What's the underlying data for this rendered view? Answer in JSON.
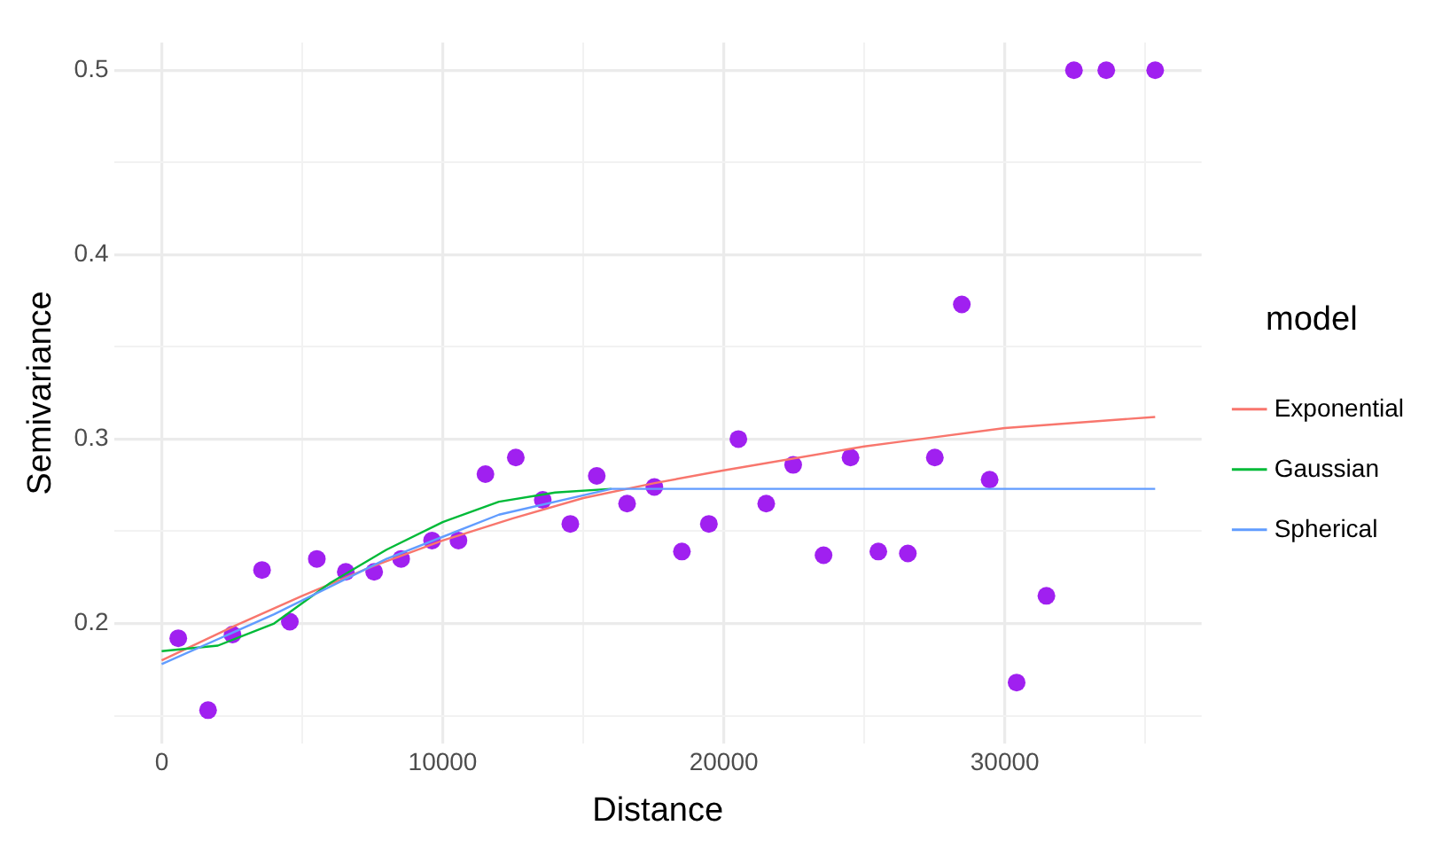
{
  "chart_data": {
    "type": "scatter",
    "xlabel": "Distance",
    "ylabel": "Semivariance",
    "legend_title": "model",
    "legend": "right",
    "grid": true,
    "xlim": [
      -1700,
      37000
    ],
    "ylim": [
      0.135,
      0.515
    ],
    "xticks": [
      0,
      {
        "value": 5000,
        "label": null
      },
      10000,
      {
        "value": 15000,
        "label": null
      },
      20000,
      {
        "value": 25000,
        "label": null
      },
      30000,
      {
        "value": 35000,
        "label": null
      }
    ],
    "yticks": [
      {
        "value": 0.15,
        "label": null
      },
      0.2,
      {
        "value": 0.25,
        "label": null
      },
      0.3,
      {
        "value": 0.35,
        "label": null
      },
      0.4,
      {
        "value": 0.45,
        "label": null
      },
      0.5
    ],
    "series": [
      {
        "marker": "circle",
        "color": "#a020f0",
        "x": [
          590,
          1650,
          2520,
          3570,
          4560,
          5520,
          6550,
          7560,
          8520,
          9620,
          10560,
          11520,
          12600,
          13560,
          14540,
          15480,
          16560,
          17530,
          18510,
          19470,
          20520,
          21510,
          22470,
          23550,
          24510,
          25500,
          26550,
          27510,
          28470,
          29460,
          30420,
          31480,
          32460,
          33610,
          35350
        ],
        "values": [
          0.192,
          0.153,
          0.194,
          0.229,
          0.201,
          0.235,
          0.228,
          0.228,
          0.235,
          0.245,
          0.245,
          0.281,
          0.29,
          0.267,
          0.254,
          0.28,
          0.265,
          0.274,
          0.239,
          0.254,
          0.3,
          0.265,
          0.286,
          0.237,
          0.29,
          0.239,
          0.238,
          0.29,
          0.373,
          0.278,
          0.168,
          0.215,
          0.5,
          0.5,
          0.5
        ]
      },
      {
        "type": "line",
        "name": "Exponential",
        "color": "#f8766d",
        "x": [
          0,
          2500,
          5000,
          7500,
          10000,
          12500,
          15000,
          17500,
          20000,
          25000,
          30000,
          35350
        ],
        "values": [
          0.18,
          0.198,
          0.215,
          0.231,
          0.245,
          0.257,
          0.268,
          0.276,
          0.283,
          0.296,
          0.306,
          0.312
        ]
      },
      {
        "type": "line",
        "name": "Gaussian",
        "color": "#00ba38",
        "x": [
          0,
          2000,
          4000,
          6000,
          8000,
          10000,
          12000,
          14000,
          16000
        ],
        "values": [
          0.185,
          0.188,
          0.2,
          0.222,
          0.24,
          0.255,
          0.266,
          0.271,
          0.273
        ]
      },
      {
        "type": "line",
        "name": "Spherical",
        "color": "#619cff",
        "x": [
          0,
          4000,
          8000,
          12000,
          16000,
          35350
        ],
        "values": [
          0.178,
          0.205,
          0.235,
          0.259,
          0.273,
          0.273
        ]
      }
    ]
  }
}
